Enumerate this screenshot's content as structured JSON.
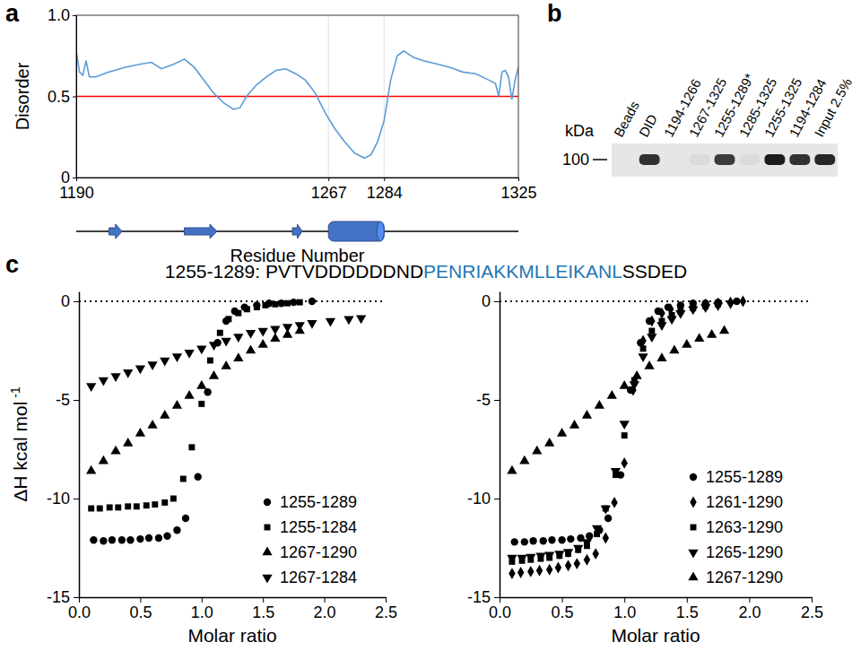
{
  "chart_data": [
    {
      "panel": "a",
      "type": "line",
      "x_label": "Residue Number",
      "y_label": "Disorder",
      "xlim": [
        1190,
        1325
      ],
      "ylim": [
        0,
        1
      ],
      "xticks": [
        1190,
        1267,
        1284,
        1325
      ],
      "yticks": [
        0,
        0.5,
        {
          "value": 1,
          "label": "1.0"
        }
      ],
      "grid": true,
      "color": "#5b9bd5",
      "x": [
        1190,
        1191,
        1192,
        1193,
        1194,
        1196,
        1200,
        1205,
        1210,
        1213,
        1216,
        1220,
        1223,
        1226,
        1229,
        1232,
        1235,
        1238,
        1240,
        1242,
        1245,
        1248,
        1251,
        1254,
        1257,
        1260,
        1263,
        1266,
        1269,
        1272,
        1275,
        1278,
        1280,
        1282,
        1284,
        1286,
        1288,
        1290,
        1293,
        1296,
        1300,
        1304,
        1308,
        1312,
        1316,
        1318,
        1319,
        1320,
        1321,
        1322,
        1323,
        1324,
        1325
      ],
      "values": [
        0.78,
        0.65,
        0.63,
        0.72,
        0.62,
        0.62,
        0.65,
        0.68,
        0.7,
        0.71,
        0.67,
        0.7,
        0.73,
        0.68,
        0.6,
        0.52,
        0.46,
        0.42,
        0.43,
        0.5,
        0.57,
        0.62,
        0.66,
        0.67,
        0.64,
        0.6,
        0.52,
        0.4,
        0.3,
        0.22,
        0.15,
        0.12,
        0.14,
        0.22,
        0.35,
        0.6,
        0.75,
        0.78,
        0.74,
        0.72,
        0.7,
        0.68,
        0.65,
        0.64,
        0.6,
        0.58,
        0.5,
        0.65,
        0.66,
        0.62,
        0.48,
        0.6,
        0.68
      ],
      "reference_line": {
        "y": 0.5,
        "color": "#ff0000"
      },
      "secondary_structure": [
        {
          "type": "strand",
          "start": 1200,
          "end": 1204,
          "color": "#4472c4"
        },
        {
          "type": "strand",
          "start": 1223,
          "end": 1233,
          "color": "#4472c4"
        },
        {
          "type": "strand",
          "start": 1256,
          "end": 1259,
          "color": "#4472c4"
        },
        {
          "type": "helix",
          "start": 1267,
          "end": 1284,
          "color": "#4472c4"
        }
      ]
    },
    {
      "panel": "b",
      "type": "blot",
      "categories": [
        "Beads",
        "DID",
        "1194-1266",
        "1267-1325",
        "1255-1289*",
        "1285-1325",
        "1255-1325",
        "1194-1284",
        "Input 2.5%"
      ],
      "values": [
        0,
        0.85,
        0,
        0.05,
        0.8,
        0.05,
        0.95,
        0.85,
        0.9
      ],
      "intensity_range": [
        0,
        1
      ],
      "marker_label": "kDa",
      "marker_value": 100,
      "color": "#111111"
    },
    {
      "panel": "c",
      "type": "scatter",
      "title_parts": [
        {
          "text": "1255-1289: PVTVDDDDDDND",
          "color": "#000000"
        },
        {
          "text": "PENRIAKKMLLEIKANL",
          "color": "#1f77b4"
        },
        {
          "text": "SSDED",
          "color": "#000000"
        }
      ],
      "x_label": "Molar ratio",
      "y_label": "ΔH kcal mol",
      "y_label_superscript": "-1",
      "xlim": [
        0,
        2.5
      ],
      "ylim": [
        -15,
        0.5
      ],
      "xticks": [
        {
          "value": 0,
          "label": "0.0"
        },
        0.5,
        {
          "value": 1,
          "label": "1.0"
        },
        1.5,
        {
          "value": 2,
          "label": "2.0"
        },
        2.5
      ],
      "yticks": [
        -15,
        -10,
        -5,
        0
      ],
      "reference_line": {
        "y": 0,
        "line_style": "dotted"
      },
      "legend": "lower right",
      "series": [
        {
          "name": "1255-1289",
          "marker": "circle",
          "color": "#000000",
          "x": [
            0.12,
            0.2,
            0.27,
            0.35,
            0.42,
            0.5,
            0.57,
            0.65,
            0.72,
            0.8,
            0.87,
            0.97,
            1.05,
            1.13,
            1.2,
            1.27,
            1.35,
            1.45,
            1.55,
            1.65,
            1.75,
            1.9
          ],
          "values": [
            -12.1,
            -12.15,
            -12.1,
            -12.1,
            -12.1,
            -12.05,
            -12,
            -12,
            -11.9,
            -11.6,
            -11,
            -8.9,
            -4.6,
            -2.1,
            -1,
            -0.5,
            -0.3,
            -0.2,
            -0.1,
            -0.1,
            -0.05,
            0
          ]
        },
        {
          "name": "1255-1284",
          "marker": "square",
          "color": "#000000",
          "x": [
            0.1,
            0.17,
            0.25,
            0.32,
            0.4,
            0.47,
            0.55,
            0.62,
            0.7,
            0.77,
            0.85,
            0.92,
            1.0,
            1.07,
            1.15,
            1.22,
            1.3,
            1.37,
            1.45,
            1.52,
            1.6,
            1.7,
            1.8
          ],
          "values": [
            -10.5,
            -10.5,
            -10.45,
            -10.45,
            -10.4,
            -10.4,
            -10.35,
            -10.3,
            -10.2,
            -10,
            -9,
            -7.4,
            -5.2,
            -3,
            -1.6,
            -0.9,
            -0.6,
            -0.4,
            -0.3,
            -0.2,
            -0.15,
            -0.1,
            -0.05
          ]
        },
        {
          "name": "1267-1290",
          "marker": "triangle",
          "color": "#000000",
          "x": [
            0.1,
            0.2,
            0.3,
            0.4,
            0.5,
            0.6,
            0.7,
            0.8,
            0.9,
            1.0,
            1.1,
            1.2,
            1.3,
            1.4,
            1.5,
            1.6,
            1.7,
            1.8
          ],
          "values": [
            -8.6,
            -8.1,
            -7.6,
            -7.2,
            -6.7,
            -6.3,
            -5.8,
            -5.3,
            -4.8,
            -4.3,
            -3.8,
            -3.3,
            -2.9,
            -2.5,
            -2.2,
            -1.9,
            -1.7,
            -1.5
          ]
        },
        {
          "name": "1267-1284",
          "marker": "triangle-down",
          "color": "#000000",
          "x": [
            0.1,
            0.2,
            0.3,
            0.4,
            0.5,
            0.6,
            0.7,
            0.8,
            0.9,
            1.0,
            1.1,
            1.2,
            1.3,
            1.4,
            1.5,
            1.6,
            1.7,
            1.8,
            1.9,
            2.05,
            2.2,
            2.3
          ],
          "values": [
            -4.3,
            -4,
            -3.8,
            -3.6,
            -3.4,
            -3.2,
            -3,
            -2.8,
            -2.6,
            -2.4,
            -2.2,
            -2,
            -1.8,
            -1.6,
            -1.5,
            -1.4,
            -1.3,
            -1.2,
            -1.1,
            -1,
            -0.9,
            -0.85
          ]
        }
      ]
    },
    {
      "type": "scatter",
      "x_label": "Molar ratio",
      "xlim": [
        0,
        2.5
      ],
      "ylim": [
        -15,
        0.5
      ],
      "xticks": [
        {
          "value": 0,
          "label": "0.0"
        },
        0.5,
        {
          "value": 1,
          "label": "1.0"
        },
        1.5,
        {
          "value": 2,
          "label": "2.0"
        },
        2.5
      ],
      "yticks": [
        -15,
        -10,
        -5,
        0
      ],
      "reference_line": {
        "y": 0,
        "line_style": "dotted"
      },
      "legend": "lower right",
      "series": [
        {
          "name": "1255-1289",
          "marker": "circle",
          "color": "#000000",
          "x": [
            0.12,
            0.2,
            0.27,
            0.35,
            0.42,
            0.5,
            0.57,
            0.65,
            0.72,
            0.8,
            0.87,
            0.97,
            1.05,
            1.13,
            1.2,
            1.27,
            1.35,
            1.45,
            1.55,
            1.65,
            1.75,
            1.9
          ],
          "values": [
            -12.2,
            -12.2,
            -12.15,
            -12.15,
            -12.1,
            -12.1,
            -12.05,
            -12,
            -11.9,
            -11.6,
            -11,
            -8.8,
            -4.5,
            -2.1,
            -1,
            -0.5,
            -0.3,
            -0.2,
            -0.1,
            -0.1,
            -0.05,
            0
          ]
        },
        {
          "name": "1261-1290",
          "marker": "diamond",
          "color": "#000000",
          "x": [
            0.1,
            0.17,
            0.25,
            0.32,
            0.4,
            0.47,
            0.55,
            0.62,
            0.7,
            0.77,
            0.85,
            0.92,
            1.0,
            1.07,
            1.15,
            1.22,
            1.3,
            1.37,
            1.45,
            1.55,
            1.65,
            1.75,
            1.85,
            1.95
          ],
          "values": [
            -13.8,
            -13.75,
            -13.7,
            -13.65,
            -13.6,
            -13.5,
            -13.4,
            -13.3,
            -13.1,
            -12.8,
            -12,
            -10.2,
            -8.2,
            -4.5,
            -2,
            -1,
            -0.6,
            -0.4,
            -0.3,
            -0.2,
            -0.15,
            -0.1,
            -0.05,
            0
          ]
        },
        {
          "name": "1263-1290",
          "marker": "square",
          "color": "#000000",
          "x": [
            0.1,
            0.18,
            0.25,
            0.33,
            0.4,
            0.48,
            0.55,
            0.63,
            0.7,
            0.78,
            0.85,
            0.93,
            1.0,
            1.08,
            1.15,
            1.22,
            1.3,
            1.38,
            1.45,
            1.55,
            1.65,
            1.75
          ],
          "values": [
            -13.2,
            -13.15,
            -13.1,
            -13.05,
            -13,
            -12.9,
            -12.8,
            -12.6,
            -12.4,
            -11.8,
            -10.5,
            -8.8,
            -6.8,
            -4,
            -2.4,
            -1.5,
            -1,
            -0.7,
            -0.5,
            -0.35,
            -0.25,
            -0.15
          ]
        },
        {
          "name": "1265-1290",
          "marker": "triangle-down",
          "color": "#000000",
          "x": [
            0.1,
            0.18,
            0.25,
            0.33,
            0.4,
            0.48,
            0.55,
            0.63,
            0.7,
            0.78,
            0.85,
            0.93,
            1.0,
            1.08,
            1.15,
            1.22,
            1.3,
            1.38,
            1.45,
            1.55,
            1.65,
            1.75,
            1.85
          ],
          "values": [
            -13,
            -13,
            -12.95,
            -12.9,
            -12.85,
            -12.8,
            -12.7,
            -12.5,
            -12.2,
            -11.5,
            -10.5,
            -8.6,
            -6.2,
            -4.2,
            -2.8,
            -1.8,
            -1.2,
            -0.9,
            -0.6,
            -0.4,
            -0.3,
            -0.2,
            -0.1
          ]
        },
        {
          "name": "1267-1290",
          "marker": "triangle",
          "color": "#000000",
          "x": [
            0.1,
            0.2,
            0.3,
            0.4,
            0.5,
            0.6,
            0.7,
            0.8,
            0.9,
            1.0,
            1.1,
            1.2,
            1.3,
            1.4,
            1.5,
            1.6,
            1.7,
            1.8
          ],
          "values": [
            -8.6,
            -8.1,
            -7.6,
            -7.2,
            -6.7,
            -6.3,
            -5.8,
            -5.3,
            -4.8,
            -4.3,
            -3.8,
            -3.3,
            -2.9,
            -2.5,
            -2.2,
            -1.9,
            -1.7,
            -1.5
          ]
        }
      ]
    }
  ]
}
